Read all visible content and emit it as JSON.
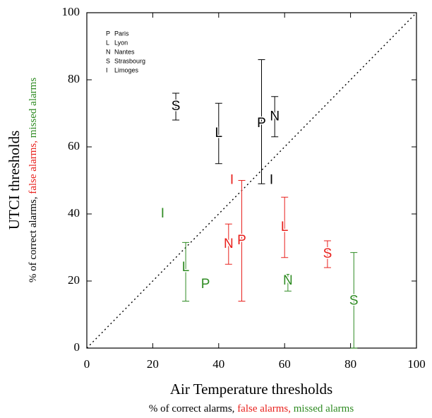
{
  "chart_data": {
    "type": "scatter",
    "x_label": "Air Temperature thresholds",
    "y_label": "UTCI thresholds",
    "label_note": [
      "% of correct alarms,",
      "false alarms,",
      "missed alarms"
    ],
    "xlim": [
      0,
      100
    ],
    "ylim": [
      0,
      100
    ],
    "xticks": [
      0,
      20,
      40,
      60,
      80,
      100
    ],
    "yticks": [
      0,
      20,
      40,
      60,
      80,
      100
    ],
    "legend": {
      "position": "upper left",
      "entries": [
        {
          "code": "P",
          "name": "Paris"
        },
        {
          "code": "L",
          "name": "Lyon"
        },
        {
          "code": "N",
          "name": "Nantes"
        },
        {
          "code": "S",
          "name": "Strasbourg"
        },
        {
          "code": "I",
          "name": "Limoges"
        }
      ]
    },
    "series": [
      {
        "color": "#000000",
        "labels": [
          "S",
          "L",
          "P",
          "N",
          "I"
        ],
        "x": [
          27,
          40,
          53,
          57,
          56
        ],
        "values": [
          72,
          64,
          67,
          69,
          50
        ],
        "err_low": [
          68,
          55,
          49,
          63,
          null
        ],
        "err_high": [
          76,
          73,
          86,
          75,
          null
        ]
      },
      {
        "color": "#e8201c",
        "labels": [
          "I",
          "P",
          "N",
          "L",
          "S"
        ],
        "x": [
          44,
          47,
          43,
          60,
          73
        ],
        "values": [
          50,
          32,
          31,
          36,
          28
        ],
        "err_low": [
          null,
          14,
          25,
          27,
          24
        ],
        "err_high": [
          null,
          50,
          37,
          45,
          32
        ]
      },
      {
        "color": "#2e8b22",
        "labels": [
          "I",
          "L",
          "P",
          "N",
          "S"
        ],
        "x": [
          23,
          30,
          36,
          61,
          81
        ],
        "values": [
          40,
          24,
          19,
          20,
          14
        ],
        "err_low": [
          null,
          14,
          null,
          17,
          0
        ],
        "err_high": [
          null,
          31.5,
          null,
          22,
          28.5
        ]
      }
    ]
  }
}
